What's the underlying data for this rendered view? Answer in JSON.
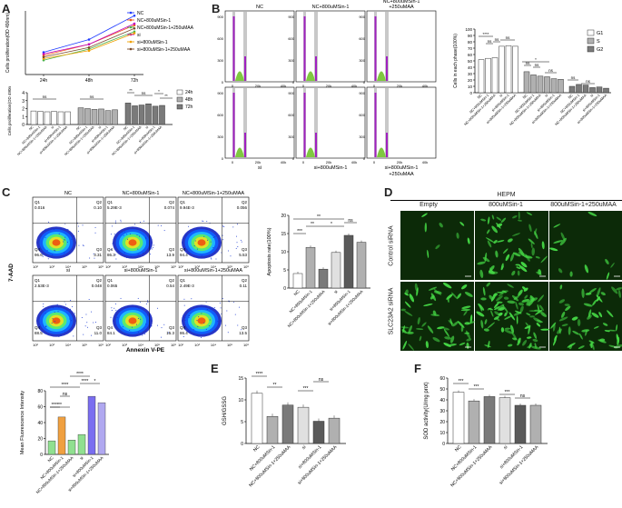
{
  "panel_letters": {
    "a": "A",
    "b": "B",
    "c": "C",
    "d": "D",
    "e": "E",
    "f": "F"
  },
  "colors": {
    "nc": "#1f3bff",
    "nc800": "#f05a1c",
    "nc800maa": "#4cb34c",
    "si": "#c000c0",
    "si800": "#f0a000",
    "si800maa": "#7a4a2a",
    "white_bar": "#ffffff",
    "gray1": "#b0b0b0",
    "gray2": "#7a7a7a",
    "dark": "#5a5a5a",
    "purple": "#7a6ef0",
    "lilac": "#b0a8f0",
    "green_bar": "#90e090",
    "orange_bar": "#f0a040",
    "microscopy": "#0c2a08",
    "cell_green": "#45d845"
  },
  "chart_data": [
    {
      "id": "A-line",
      "type": "line",
      "ylabel": "Cells proliferation(OD 490nm)",
      "x": [
        "24h",
        "48h",
        "72h"
      ],
      "ylim": [
        0,
        3
      ],
      "series": [
        {
          "name": "NC",
          "values": [
            1.7,
            2.1,
            2.85
          ]
        },
        {
          "name": "NC+800uMSin-1",
          "values": [
            1.6,
            1.95,
            2.55
          ]
        },
        {
          "name": "NC+800uMSin-1+250uMAA",
          "values": [
            1.45,
            1.8,
            2.35
          ]
        },
        {
          "name": "si",
          "values": [
            1.65,
            1.95,
            2.6
          ]
        },
        {
          "name": "si+800uMSin-1",
          "values": [
            1.5,
            1.75,
            2.3
          ]
        },
        {
          "name": "si+800uMSin-1+250uMAA",
          "values": [
            1.55,
            1.85,
            2.45
          ]
        }
      ]
    },
    {
      "id": "A-bar",
      "type": "bar",
      "ylabel": "Cells proliferation(OD 490nm)",
      "ylim": [
        0,
        4
      ],
      "yticks": [
        "0",
        "1",
        "2",
        "3",
        "4"
      ],
      "categories": [
        "NC",
        "NC+800uMSin-1",
        "NC+800uMSin-1+250uMAA",
        "si",
        "si+800uMSin-1",
        "si+800uMSin-1+250uMAA"
      ],
      "series": [
        {
          "name": "24h",
          "values": [
            1.7,
            1.65,
            1.6,
            1.65,
            1.6,
            1.6
          ]
        },
        {
          "name": "48h",
          "values": [
            2.1,
            2.0,
            1.9,
            1.95,
            1.75,
            1.85
          ]
        },
        {
          "name": "72h",
          "values": [
            2.7,
            2.35,
            2.45,
            2.6,
            2.3,
            2.4
          ]
        }
      ],
      "annotations": [
        "ns",
        "ns",
        "**",
        "ns",
        "*",
        "**"
      ]
    },
    {
      "id": "B-bar",
      "type": "bar",
      "ylabel": "Cells in each phase(100%)",
      "ylim": [
        0,
        100
      ],
      "yticks": [
        "0",
        "10",
        "20",
        "30",
        "40",
        "50",
        "60",
        "70",
        "80",
        "90",
        "100"
      ],
      "categories": [
        "NC",
        "NC+800uMSin-1",
        "NC+800uMSin-1+250uMAA",
        "si",
        "si+800uMSin-1",
        "si+800uMSin-1+250uMAA"
      ],
      "series": [
        {
          "name": "G1",
          "values": [
            52,
            54,
            55,
            73,
            74,
            73
          ]
        },
        {
          "name": "S",
          "values": [
            33,
            28,
            26,
            25,
            22,
            21
          ]
        },
        {
          "name": "G2",
          "values": [
            10,
            13,
            12,
            8,
            9,
            7
          ]
        }
      ],
      "annotations": [
        "****",
        "ns",
        "ns",
        "ns",
        "*",
        "ns",
        "ns",
        "ns",
        "ns",
        "ns"
      ]
    },
    {
      "id": "C-bar",
      "type": "bar",
      "ylabel": "Apoptosis rate(100%)",
      "ylim": [
        0,
        20
      ],
      "yticks": [
        "0",
        "5",
        "10",
        "15",
        "20"
      ],
      "categories": [
        "NC",
        "NC+800uMSin-1",
        "NC+800uMSin-1+250uMAA",
        "si",
        "si+800uMSin-1",
        "si+800uMSin-1+250uMAA"
      ],
      "values": [
        4.0,
        11.2,
        5.2,
        9.8,
        14.5,
        12.6
      ],
      "annotations": [
        "***",
        "**",
        "**",
        "*",
        "ns"
      ]
    },
    {
      "id": "MFI-bar",
      "type": "bar",
      "ylabel": "Mean Fluorescence Intensity",
      "ylim": [
        0,
        80
      ],
      "yticks": [
        "0",
        "20",
        "40",
        "60",
        "80"
      ],
      "categories": [
        "NC",
        "NC+800uMSin-1",
        "NC+800uMSin-1+250uMAA",
        "si",
        "si+800uMSin-1",
        "si+800uMSin-1+250uMAA"
      ],
      "values": [
        17,
        47,
        18,
        25,
        73,
        65
      ],
      "annotations": [
        "****",
        "****",
        "ns",
        "**",
        "****",
        "****",
        "*"
      ]
    },
    {
      "id": "E-bar",
      "type": "bar",
      "ylabel": "GSH/GSSG",
      "ylim": [
        0,
        15
      ],
      "yticks": [
        "0",
        "5",
        "10",
        "15"
      ],
      "categories": [
        "NC",
        "NC+800uMSin-1",
        "NC+800uMSin-1+250uMAA",
        "si",
        "si+800uMSin-1",
        "si+800uMSin-1+250uMAA"
      ],
      "values": [
        11.5,
        6.2,
        8.8,
        8.3,
        5.1,
        5.8
      ],
      "annotations": [
        "****",
        "**",
        "***",
        "ns"
      ]
    },
    {
      "id": "F-bar",
      "type": "bar",
      "ylabel": "SOD activity(U/mg prot)",
      "ylim": [
        0,
        60
      ],
      "yticks": [
        "0",
        "10",
        "20",
        "30",
        "40",
        "50",
        "60"
      ],
      "categories": [
        "NC",
        "NC+800uMSin-1",
        "NC+800uMSin-1+250uMAA",
        "si",
        "si+800uMSin-1",
        "si+800uMSin-1+250uMAA"
      ],
      "values": [
        47,
        39,
        43,
        42,
        35,
        35
      ],
      "annotations": [
        "***",
        "***",
        "***",
        "ns"
      ]
    }
  ],
  "flow_b": {
    "titles": [
      "NC",
      "NC+800uMSin-1",
      "NC+800uMSin-1\n+250uMAA"
    ],
    "bottom_labels": [
      "si",
      "si+800uMSin-1",
      "si+800uMSin-1\n+250uMAA"
    ],
    "yticks": [
      "0",
      "300",
      "600",
      "900"
    ],
    "xticks": [
      "0",
      "20k",
      "40k"
    ]
  },
  "flow_c": {
    "titles": [
      "NC",
      "NC+800uMSin-1",
      "NC+800uMSin-1+250uMAA"
    ],
    "row2_titles": [
      "si",
      "si+800uMSin-1",
      "si+800uMSin-1+250uMAA"
    ],
    "ylabel": "7-AAD",
    "xlabel": "Annexin V-PE",
    "quadrants": [
      {
        "q1": "0.016",
        "q2": "0.10",
        "q4": "96.6",
        "q3": "3.31"
      },
      {
        "q1": "5.29E-3",
        "q2": "0.074",
        "q4": "86.3",
        "q3": "13.9"
      },
      {
        "q1": "9.94E-3",
        "q2": "0.056",
        "q4": "94.4",
        "q3": "5.53"
      },
      {
        "q1": "2.53E-3",
        "q2": "0.048",
        "q4": "88.5",
        "q3": "11.0"
      },
      {
        "q1": "0.065",
        "q2": "0.54",
        "q4": "84.1",
        "q3": "15.3"
      },
      {
        "q1": "2.49E-3",
        "q2": "0.11",
        "q4": "86.4",
        "q3": "13.5"
      }
    ],
    "q_names": [
      "Q1",
      "Q2",
      "Q3",
      "Q4"
    ],
    "ticks": [
      "10²",
      "10³",
      "10⁴",
      "10⁵",
      "10⁶"
    ]
  },
  "panel_d": {
    "header": "HEPM",
    "cols": [
      "Empty",
      "800uMSin-1",
      "800uMSin-1+250uMAA"
    ],
    "rows": [
      "Control siRNA",
      "SLC23A2 siRNA"
    ]
  }
}
